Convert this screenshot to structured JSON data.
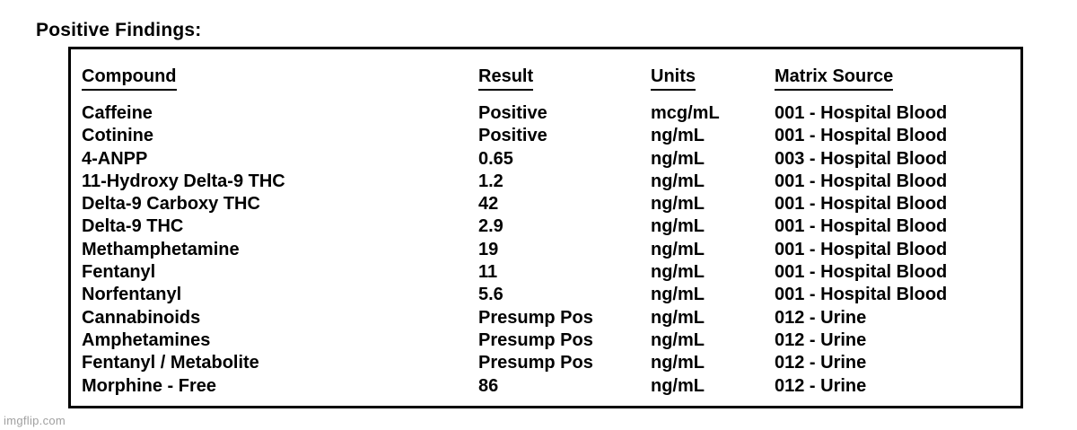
{
  "page": {
    "title": "Positive Findings:",
    "watermark": "imgflip.com"
  },
  "table": {
    "columns": [
      "Compound",
      "Result",
      "Units",
      "Matrix Source"
    ],
    "rows": [
      {
        "compound": "Caffeine",
        "result": "Positive",
        "units": "mcg/mL",
        "matrix_source": "001 - Hospital Blood"
      },
      {
        "compound": "Cotinine",
        "result": "Positive",
        "units": "ng/mL",
        "matrix_source": "001 - Hospital Blood"
      },
      {
        "compound": "4-ANPP",
        "result": "0.65",
        "units": "ng/mL",
        "matrix_source": "003 - Hospital Blood"
      },
      {
        "compound": "11-Hydroxy Delta-9 THC",
        "result": "1.2",
        "units": "ng/mL",
        "matrix_source": "001 - Hospital Blood"
      },
      {
        "compound": "Delta-9 Carboxy THC",
        "result": "42",
        "units": "ng/mL",
        "matrix_source": "001 - Hospital Blood"
      },
      {
        "compound": "Delta-9 THC",
        "result": "2.9",
        "units": "ng/mL",
        "matrix_source": "001 - Hospital Blood"
      },
      {
        "compound": "Methamphetamine",
        "result": "19",
        "units": "ng/mL",
        "matrix_source": "001 - Hospital Blood"
      },
      {
        "compound": "Fentanyl",
        "result": "11",
        "units": "ng/mL",
        "matrix_source": "001 - Hospital Blood"
      },
      {
        "compound": "Norfentanyl",
        "result": "5.6",
        "units": "ng/mL",
        "matrix_source": "001 - Hospital Blood"
      },
      {
        "compound": "Cannabinoids",
        "result": "Presump Pos",
        "units": "ng/mL",
        "matrix_source": "012 - Urine"
      },
      {
        "compound": "Amphetamines",
        "result": "Presump Pos",
        "units": "ng/mL",
        "matrix_source": "012 - Urine"
      },
      {
        "compound": "Fentanyl / Metabolite",
        "result": "Presump Pos",
        "units": "ng/mL",
        "matrix_source": "012 - Urine"
      },
      {
        "compound": "Morphine - Free",
        "result": "86",
        "units": "ng/mL",
        "matrix_source": "012 - Urine"
      }
    ]
  },
  "colors": {
    "text": "#000000",
    "border": "#000000",
    "background": "#ffffff",
    "watermark": "#a0a0a0"
  }
}
